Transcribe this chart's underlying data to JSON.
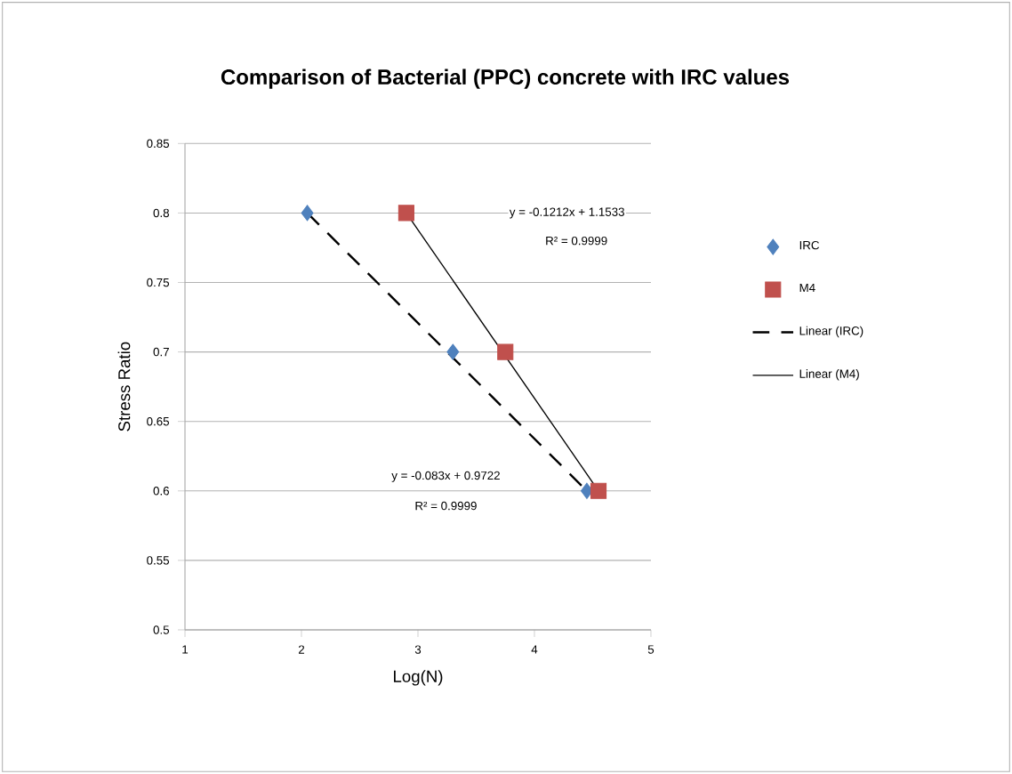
{
  "chart_data": {
    "type": "scatter",
    "title": "Comparison of Bacterial (PPC) concrete with IRC values",
    "xlabel": "Log(N)",
    "ylabel": "Stress Ratio",
    "xlim": [
      1,
      5
    ],
    "xticks": [
      1,
      2,
      3,
      4,
      5
    ],
    "ylim": [
      0.5,
      0.85
    ],
    "yticks": [
      0.5,
      0.55,
      0.6,
      0.65,
      0.7,
      0.75,
      0.8,
      0.85
    ],
    "grid": "y",
    "legend": "right",
    "series": [
      {
        "name": "IRC",
        "type": "scatter",
        "color": "#4f81bd",
        "marker": "diamond",
        "x": [
          2.05,
          3.3,
          4.45
        ],
        "values": [
          0.8,
          0.7,
          0.6
        ]
      },
      {
        "name": "M4",
        "type": "scatter",
        "color": "#c0504d",
        "marker": "square",
        "x": [
          2.9,
          3.75,
          4.55
        ],
        "values": [
          0.8,
          0.7,
          0.6
        ]
      },
      {
        "name": "Linear (IRC)",
        "type": "line",
        "color": "#000000",
        "line_style": "dashed",
        "marker": "none",
        "x": [
          2.05,
          4.45
        ],
        "values": [
          0.8,
          0.6
        ]
      },
      {
        "name": "Linear (M4)",
        "type": "line",
        "color": "#000000",
        "line_style": "solid",
        "marker": "none",
        "x": [
          2.9,
          4.55
        ],
        "values": [
          0.8,
          0.6
        ]
      }
    ],
    "annotations": [
      "y = -0.1212x + 1.1533",
      "R² = 0.9999",
      "y = -0.083x + 0.9722",
      "R² = 0.9999"
    ]
  }
}
